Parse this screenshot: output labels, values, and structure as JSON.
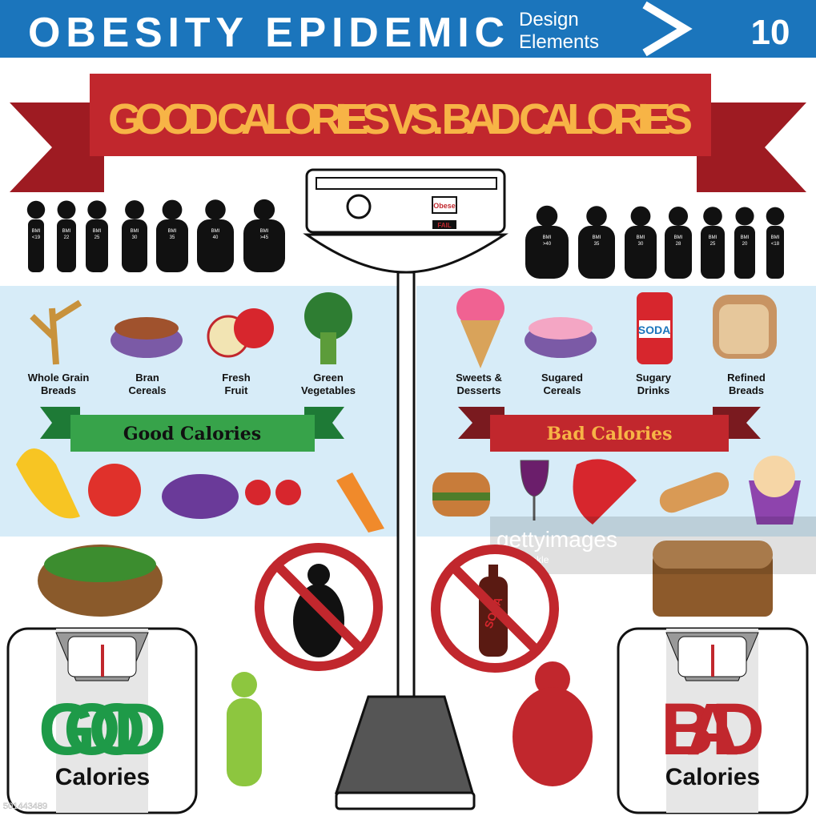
{
  "header": {
    "title": "OBESITY EPIDEMIC",
    "subtitle_line1": "Design",
    "subtitle_line2": "Elements",
    "number": "10"
  },
  "banner": {
    "title": "GOOD CALORIES VS. BAD CALORIES"
  },
  "silhouettes": {
    "left": [
      {
        "top": "BMI",
        "bottom": "<19"
      },
      {
        "top": "BMI",
        "bottom": "22"
      },
      {
        "top": "BMI",
        "bottom": "25"
      },
      {
        "top": "BMI",
        "bottom": "30"
      },
      {
        "top": "BMI",
        "bottom": "35"
      },
      {
        "top": "BMI",
        "bottom": "40"
      },
      {
        "top": "BMI",
        "bottom": ">45"
      }
    ],
    "right": [
      {
        "top": "BMI",
        "bottom": ">40"
      },
      {
        "top": "BMI",
        "bottom": "35"
      },
      {
        "top": "BMI",
        "bottom": "30"
      },
      {
        "top": "BMI",
        "bottom": "28"
      },
      {
        "top": "BMI",
        "bottom": "25"
      },
      {
        "top": "BMI",
        "bottom": "20"
      },
      {
        "top": "BMI",
        "bottom": "<18"
      }
    ]
  },
  "scale": {
    "label": "Obese",
    "status": "FAIL"
  },
  "good_foods": [
    {
      "lines": [
        "Whole Grain",
        "Breads"
      ]
    },
    {
      "lines": [
        "Bran",
        "Cereals"
      ]
    },
    {
      "lines": [
        "Fresh",
        "Fruit"
      ]
    },
    {
      "lines": [
        "Green",
        "Vegetables"
      ]
    }
  ],
  "bad_foods": [
    {
      "lines": [
        "Sweets &",
        "Desserts"
      ]
    },
    {
      "lines": [
        "Sugared",
        "Cereals"
      ]
    },
    {
      "lines": [
        "Sugary",
        "Drinks"
      ]
    },
    {
      "lines": [
        "Refined",
        "Breads"
      ]
    }
  ],
  "soda_can": {
    "label": "SODA"
  },
  "soda_bottle": {
    "label": "SODA"
  },
  "good_ribbon": {
    "title": "Good Calories"
  },
  "bad_ribbon": {
    "title": "Bad Calories"
  },
  "good_card": {
    "word": "GOOD",
    "sub": "Calories"
  },
  "bad_card": {
    "word": "BAD",
    "sub": "Calories"
  },
  "watermark": {
    "brand": "gettyimages",
    "author": "kathykonkle",
    "id": "501443489"
  }
}
